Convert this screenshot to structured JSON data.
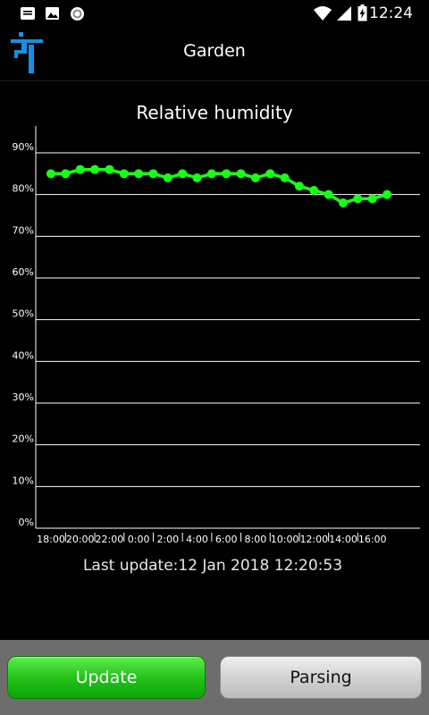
{
  "status_bar": {
    "time": "12:24",
    "icons": [
      "notification-message-icon",
      "image-icon",
      "sync-circle-icon",
      "wifi-icon",
      "cell-signal-icon",
      "battery-charging-icon"
    ]
  },
  "app_bar": {
    "title": "Garden",
    "logo": "app-logo-icon"
  },
  "colors": {
    "series": "#18ff18",
    "grid": "#ffffff",
    "update_button": "#2bcb1f",
    "parsing_button": "#d0d0d0",
    "bottom_bar": "#6d6d6d"
  },
  "chart_data": {
    "type": "line",
    "title": "Relative humidity",
    "xlabel": "",
    "ylabel": "",
    "ylim": [
      0,
      90
    ],
    "yticks": [
      "0%",
      "10%",
      "20%",
      "30%",
      "40%",
      "50%",
      "60%",
      "70%",
      "80%",
      "90%"
    ],
    "xticks": [
      "18:00",
      "20:00",
      "22:00",
      "0:00",
      "2:00",
      "4:00",
      "6:00",
      "8:00",
      "10:00",
      "12:00",
      "14:00",
      "16:00"
    ],
    "grid": true,
    "series": [
      {
        "values": [
          85,
          85,
          86,
          86,
          86,
          85,
          85,
          85,
          84,
          85,
          84,
          85,
          85,
          85,
          84,
          85,
          84,
          82,
          81,
          80,
          78,
          79,
          79,
          80
        ]
      }
    ]
  },
  "last_update": "Last update:12 Jan 2018 12:20:53",
  "buttons": {
    "update_label": "Update",
    "parsing_label": "Parsing"
  }
}
